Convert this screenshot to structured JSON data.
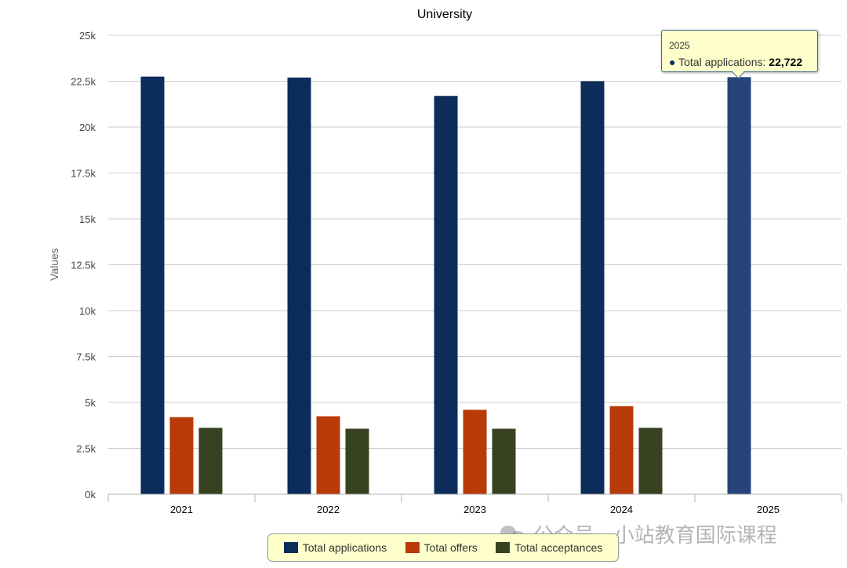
{
  "chart_data": {
    "type": "bar",
    "title": "University",
    "xlabel": "",
    "ylabel": "Values",
    "ylim": [
      0,
      25000
    ],
    "yticks": [
      0,
      2500,
      5000,
      7500,
      10000,
      12500,
      15000,
      17500,
      20000,
      22500,
      25000
    ],
    "ytick_labels": [
      "0k",
      "2.5k",
      "5k",
      "7.5k",
      "10k",
      "12.5k",
      "15k",
      "17.5k",
      "20k",
      "22.5k",
      "25k"
    ],
    "grid": true,
    "legend_position": "bottom-center",
    "categories": [
      "2021",
      "2022",
      "2023",
      "2024",
      "2025"
    ],
    "series": [
      {
        "name": "Total applications",
        "color": "#0c2c5c",
        "values": [
          22750,
          22700,
          21700,
          22500,
          22722
        ]
      },
      {
        "name": "Total offers",
        "color": "#b83a08",
        "values": [
          4200,
          4250,
          4600,
          4800,
          null
        ]
      },
      {
        "name": "Total acceptances",
        "color": "#374320",
        "values": [
          3620,
          3570,
          3570,
          3620,
          null
        ]
      }
    ],
    "highlight": {
      "category_index": 4,
      "series_index": 0,
      "color": "#25457a"
    }
  },
  "tooltip": {
    "year": "2025",
    "series": "Total applications",
    "value": "22,722"
  },
  "watermark": "公众号 · 小站教育国际课程"
}
